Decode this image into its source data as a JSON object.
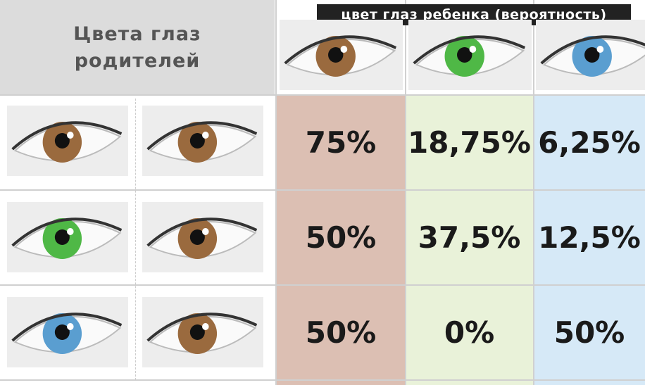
{
  "header": {
    "parents": "Цвета глаз\nродителей",
    "child": "цвет глаз ребенка (вероятность)"
  },
  "table": {
    "rows": [
      [
        "75%",
        "18,75%",
        "6,25%"
      ],
      [
        "50%",
        "37,5%",
        "12,5%"
      ],
      [
        "50%",
        "0%",
        "50%"
      ]
    ]
  }
}
